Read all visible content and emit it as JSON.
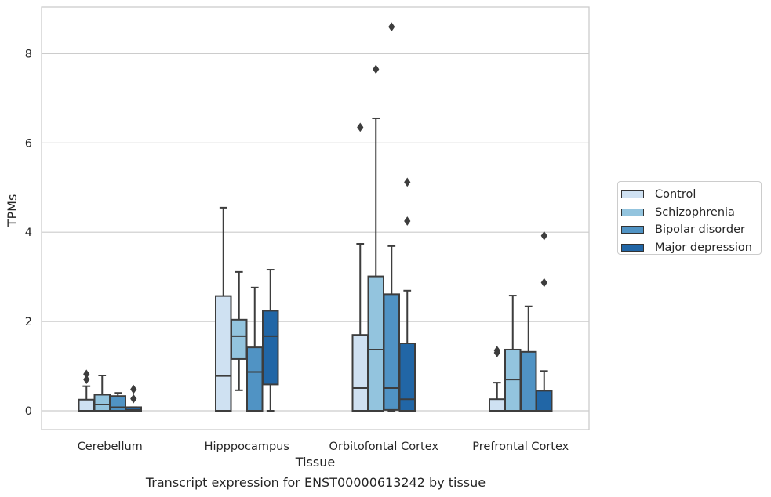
{
  "chart_data": {
    "type": "box",
    "xlabel": "Tissue",
    "ylabel": "TPMs",
    "caption": "Transcript expression for ENST00000613242 by tissue",
    "categories": [
      "Cerebellum",
      "Hipppocampus",
      "Orbitofontal Cortex",
      "Prefrontal Cortex"
    ],
    "ylim": [
      -0.42,
      9.05
    ],
    "yticks": [
      0,
      2,
      4,
      6,
      8
    ],
    "grid": "horizontal",
    "legend_position": "right",
    "series": [
      {
        "name": "Control",
        "color": "#cfe1f2",
        "boxes": [
          {
            "whislo": 0,
            "q1": 0,
            "med": 0.0,
            "q3": 0.25,
            "whishi": 0.55,
            "fliers": [
              0.7,
              0.82
            ]
          },
          {
            "whislo": 0,
            "q1": 0,
            "med": 0.78,
            "q3": 2.57,
            "whishi": 4.55,
            "fliers": []
          },
          {
            "whislo": 0,
            "q1": 0,
            "med": 0.51,
            "q3": 1.7,
            "whishi": 3.74,
            "fliers": [
              6.35
            ]
          },
          {
            "whislo": 0,
            "q1": 0,
            "med": 0.0,
            "q3": 0.26,
            "whishi": 0.63,
            "fliers": [
              1.3,
              1.35
            ]
          }
        ]
      },
      {
        "name": "Schizophrenia",
        "color": "#93c4de",
        "boxes": [
          {
            "whislo": 0,
            "q1": 0,
            "med": 0.14,
            "q3": 0.36,
            "whishi": 0.79,
            "fliers": []
          },
          {
            "whislo": 0.46,
            "q1": 1.16,
            "med": 1.67,
            "q3": 2.04,
            "whishi": 3.11,
            "fliers": []
          },
          {
            "whislo": 0,
            "q1": 0,
            "med": 1.37,
            "q3": 3.01,
            "whishi": 6.55,
            "fliers": [
              7.65
            ]
          },
          {
            "whislo": 0,
            "q1": 0,
            "med": 0.7,
            "q3": 1.37,
            "whishi": 2.58,
            "fliers": []
          }
        ]
      },
      {
        "name": "Bipolar disorder",
        "color": "#5093c4",
        "boxes": [
          {
            "whislo": 0,
            "q1": 0,
            "med": 0.08,
            "q3": 0.33,
            "whishi": 0.4,
            "fliers": []
          },
          {
            "whislo": 0,
            "q1": 0,
            "med": 0.87,
            "q3": 1.42,
            "whishi": 2.76,
            "fliers": []
          },
          {
            "whislo": 0,
            "q1": 0.02,
            "med": 0.51,
            "q3": 2.61,
            "whishi": 3.69,
            "fliers": [
              8.6
            ]
          },
          {
            "whislo": 0,
            "q1": 0,
            "med": 0.0,
            "q3": 1.32,
            "whishi": 2.34,
            "fliers": []
          }
        ]
      },
      {
        "name": "Major depression",
        "color": "#2166a6",
        "boxes": [
          {
            "whislo": 0,
            "q1": 0,
            "med": 0.02,
            "q3": 0.08,
            "whishi": 0.08,
            "fliers": [
              0.27,
              0.48
            ]
          },
          {
            "whislo": 0,
            "q1": 0.59,
            "med": 1.67,
            "q3": 2.24,
            "whishi": 3.16,
            "fliers": []
          },
          {
            "whislo": 0,
            "q1": 0,
            "med": 0.26,
            "q3": 1.51,
            "whishi": 2.69,
            "fliers": [
              4.25,
              5.12
            ]
          },
          {
            "whislo": 0,
            "q1": 0,
            "med": 0.0,
            "q3": 0.45,
            "whishi": 0.89,
            "fliers": [
              2.87,
              3.92
            ]
          }
        ]
      }
    ]
  }
}
